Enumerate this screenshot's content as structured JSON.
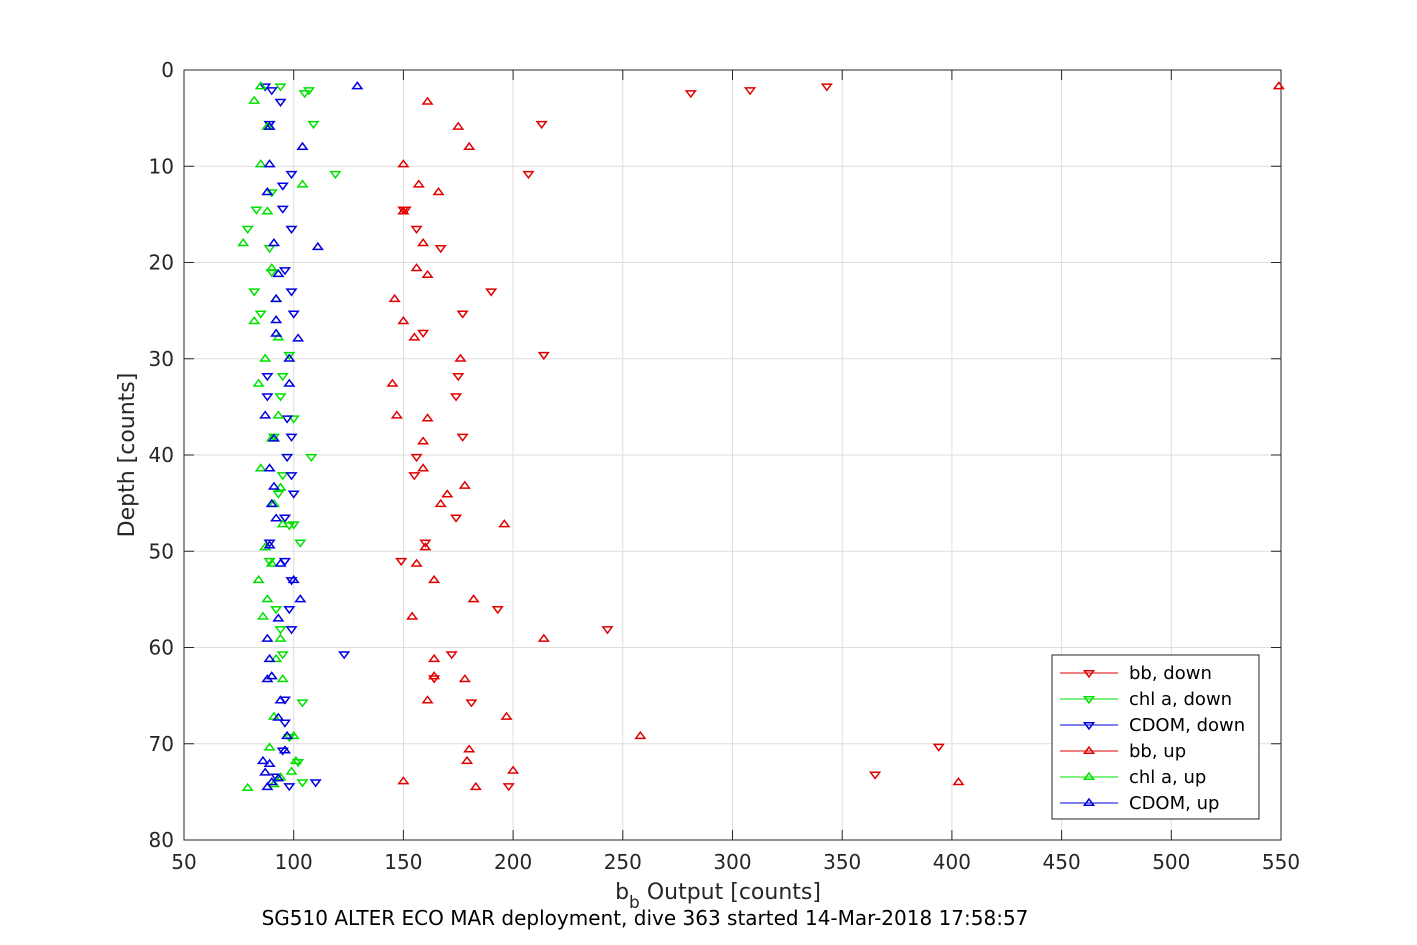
{
  "chart_data": {
    "type": "scatter",
    "xlabel_main": "b",
    "xlabel_sub": "b",
    "xlabel_rest": " Output [counts]",
    "ylabel": "Depth [counts]",
    "caption": "SG510 ALTER ECO MAR deployment, dive 363 started 14-Mar-2018 17:58:57",
    "xlim": [
      50,
      550
    ],
    "ylim": [
      0,
      80
    ],
    "y_reversed": true,
    "grid": true,
    "xticks": [
      50,
      100,
      150,
      200,
      250,
      300,
      350,
      400,
      450,
      500,
      550
    ],
    "yticks": [
      0,
      10,
      20,
      30,
      40,
      50,
      60,
      70,
      80
    ],
    "legend_position": "bottom-right",
    "series": [
      {
        "name": "bb, down",
        "color": "#e00000",
        "marker": "triangle-down",
        "points": [
          [
            343,
            1.7
          ],
          [
            308,
            2.1
          ],
          [
            281,
            2.4
          ],
          [
            213,
            5.6
          ],
          [
            207,
            10.8
          ],
          [
            150,
            14.5
          ],
          [
            156,
            16.5
          ],
          [
            167,
            18.5
          ],
          [
            190,
            23
          ],
          [
            177,
            25.3
          ],
          [
            214,
            29.6
          ],
          [
            175,
            31.8
          ],
          [
            174,
            33.9
          ],
          [
            177,
            38.1
          ],
          [
            156,
            40.2
          ],
          [
            155,
            42.1
          ],
          [
            174,
            46.5
          ],
          [
            160,
            49.1
          ],
          [
            149,
            51
          ],
          [
            193,
            56
          ],
          [
            243,
            58.1
          ],
          [
            172,
            60.7
          ],
          [
            198,
            74.4
          ],
          [
            394,
            70.3
          ],
          [
            365,
            73.2
          ],
          [
            181,
            65.7
          ],
          [
            164,
            63.2
          ],
          [
            159,
            27.3
          ],
          [
            151,
            14.5
          ]
        ]
      },
      {
        "name": "chl a, down",
        "color": "#00e000",
        "marker": "triangle-down",
        "points": [
          [
            94,
            1.7
          ],
          [
            107,
            2.1
          ],
          [
            105,
            2.4
          ],
          [
            109,
            5.6
          ],
          [
            119,
            10.8
          ],
          [
            90,
            12.7
          ],
          [
            83,
            14.5
          ],
          [
            79,
            16.5
          ],
          [
            89,
            18.5
          ],
          [
            82,
            23
          ],
          [
            85,
            25.3
          ],
          [
            90,
            21
          ],
          [
            98,
            29.6
          ],
          [
            95,
            31.8
          ],
          [
            94,
            33.9
          ],
          [
            100,
            36.2
          ],
          [
            91,
            38.1
          ],
          [
            108,
            40.2
          ],
          [
            95,
            42.1
          ],
          [
            93,
            44
          ],
          [
            100,
            47.2
          ],
          [
            103,
            49.1
          ],
          [
            89,
            51
          ],
          [
            92,
            56
          ],
          [
            94,
            58.1
          ],
          [
            95,
            60.7
          ],
          [
            104,
            65.7
          ],
          [
            98,
            69.3
          ],
          [
            102,
            71.9
          ],
          [
            104,
            74
          ],
          [
            98,
            47.3
          ]
        ]
      },
      {
        "name": "CDOM, down",
        "color": "#0000e0",
        "marker": "triangle-down",
        "points": [
          [
            87,
            1.7
          ],
          [
            90,
            2.1
          ],
          [
            89,
            5.6
          ],
          [
            99,
            10.8
          ],
          [
            95,
            12
          ],
          [
            99,
            16.5
          ],
          [
            96,
            20.8
          ],
          [
            99,
            23
          ],
          [
            100,
            25.3
          ],
          [
            95,
            14.4
          ],
          [
            88,
            31.8
          ],
          [
            88,
            33.9
          ],
          [
            97,
            36.2
          ],
          [
            99,
            38.1
          ],
          [
            97,
            40.2
          ],
          [
            99,
            42.1
          ],
          [
            100,
            44
          ],
          [
            96,
            46.5
          ],
          [
            89,
            49.1
          ],
          [
            96,
            51
          ],
          [
            99,
            53
          ],
          [
            98,
            56
          ],
          [
            99,
            58.1
          ],
          [
            123,
            60.7
          ],
          [
            96,
            65.4
          ],
          [
            96,
            67.8
          ],
          [
            95,
            70.7
          ],
          [
            92,
            73.4
          ],
          [
            98,
            74.4
          ],
          [
            110,
            74
          ],
          [
            94,
            3.3
          ]
        ]
      },
      {
        "name": "bb, up",
        "color": "#e00000",
        "marker": "triangle-up",
        "points": [
          [
            549,
            1.7
          ],
          [
            161,
            3.3
          ],
          [
            175,
            5.9
          ],
          [
            180,
            8
          ],
          [
            150,
            9.8
          ],
          [
            157,
            11.9
          ],
          [
            166,
            12.7
          ],
          [
            150,
            14.7
          ],
          [
            159,
            18
          ],
          [
            156,
            20.6
          ],
          [
            161,
            21.3
          ],
          [
            146,
            23.8
          ],
          [
            150,
            26.1
          ],
          [
            155,
            27.8
          ],
          [
            176,
            30
          ],
          [
            145,
            32.6
          ],
          [
            147,
            35.9
          ],
          [
            161,
            36.2
          ],
          [
            159,
            38.6
          ],
          [
            159,
            41.4
          ],
          [
            178,
            43.2
          ],
          [
            170,
            44.1
          ],
          [
            167,
            45.1
          ],
          [
            196,
            47.2
          ],
          [
            160,
            49.6
          ],
          [
            156,
            51.3
          ],
          [
            164,
            53
          ],
          [
            182,
            55
          ],
          [
            154,
            56.8
          ],
          [
            214,
            59.1
          ],
          [
            164,
            61.2
          ],
          [
            164,
            63
          ],
          [
            178,
            63.3
          ],
          [
            161,
            65.5
          ],
          [
            197,
            67.2
          ],
          [
            258,
            69.2
          ],
          [
            180,
            70.6
          ],
          [
            179,
            71.8
          ],
          [
            200,
            72.8
          ],
          [
            150,
            73.9
          ],
          [
            183,
            74.5
          ],
          [
            403,
            74
          ]
        ]
      },
      {
        "name": "chl a, up",
        "color": "#00e000",
        "marker": "triangle-up",
        "points": [
          [
            85,
            1.7
          ],
          [
            82,
            3.2
          ],
          [
            88,
            5.9
          ],
          [
            85,
            9.8
          ],
          [
            104,
            11.9
          ],
          [
            88,
            14.7
          ],
          [
            77,
            18
          ],
          [
            90,
            20.6
          ],
          [
            92,
            23.8
          ],
          [
            82,
            26.1
          ],
          [
            93,
            27.8
          ],
          [
            87,
            30
          ],
          [
            84,
            32.6
          ],
          [
            93,
            35.9
          ],
          [
            90,
            38.3
          ],
          [
            85,
            41.4
          ],
          [
            94,
            43.4
          ],
          [
            91,
            45.1
          ],
          [
            95,
            47.2
          ],
          [
            87,
            49.6
          ],
          [
            90,
            51.3
          ],
          [
            84,
            53
          ],
          [
            88,
            55
          ],
          [
            86,
            56.8
          ],
          [
            94,
            59.1
          ],
          [
            92,
            61.2
          ],
          [
            95,
            63.3
          ],
          [
            91,
            67.2
          ],
          [
            100,
            69.2
          ],
          [
            89,
            70.4
          ],
          [
            101,
            71.8
          ],
          [
            99,
            72.9
          ],
          [
            94,
            73.5
          ],
          [
            79,
            74.6
          ],
          [
            91,
            74.2
          ]
        ]
      },
      {
        "name": "CDOM, up",
        "color": "#0000e0",
        "marker": "triangle-up",
        "points": [
          [
            129,
            1.7
          ],
          [
            89,
            5.9
          ],
          [
            104,
            8
          ],
          [
            89,
            9.8
          ],
          [
            88,
            12.7
          ],
          [
            111,
            18.4
          ],
          [
            91,
            18
          ],
          [
            93,
            21.2
          ],
          [
            92,
            23.8
          ],
          [
            92,
            26
          ],
          [
            92,
            27.4
          ],
          [
            102,
            27.9
          ],
          [
            98,
            30
          ],
          [
            98,
            32.6
          ],
          [
            87,
            35.9
          ],
          [
            91,
            38.3
          ],
          [
            89,
            41.4
          ],
          [
            91,
            43.3
          ],
          [
            90,
            45.1
          ],
          [
            92,
            46.6
          ],
          [
            89,
            49.4
          ],
          [
            94,
            51.3
          ],
          [
            100,
            53
          ],
          [
            103,
            55
          ],
          [
            93,
            57
          ],
          [
            88,
            59.1
          ],
          [
            89,
            61.2
          ],
          [
            90,
            63
          ],
          [
            88,
            63.3
          ],
          [
            94,
            65.5
          ],
          [
            93,
            67.3
          ],
          [
            97,
            69.2
          ],
          [
            96,
            70.7
          ],
          [
            86,
            71.8
          ],
          [
            89,
            72.1
          ],
          [
            87,
            73
          ],
          [
            93,
            73.6
          ],
          [
            90,
            74
          ],
          [
            88,
            74.5
          ]
        ]
      }
    ]
  }
}
